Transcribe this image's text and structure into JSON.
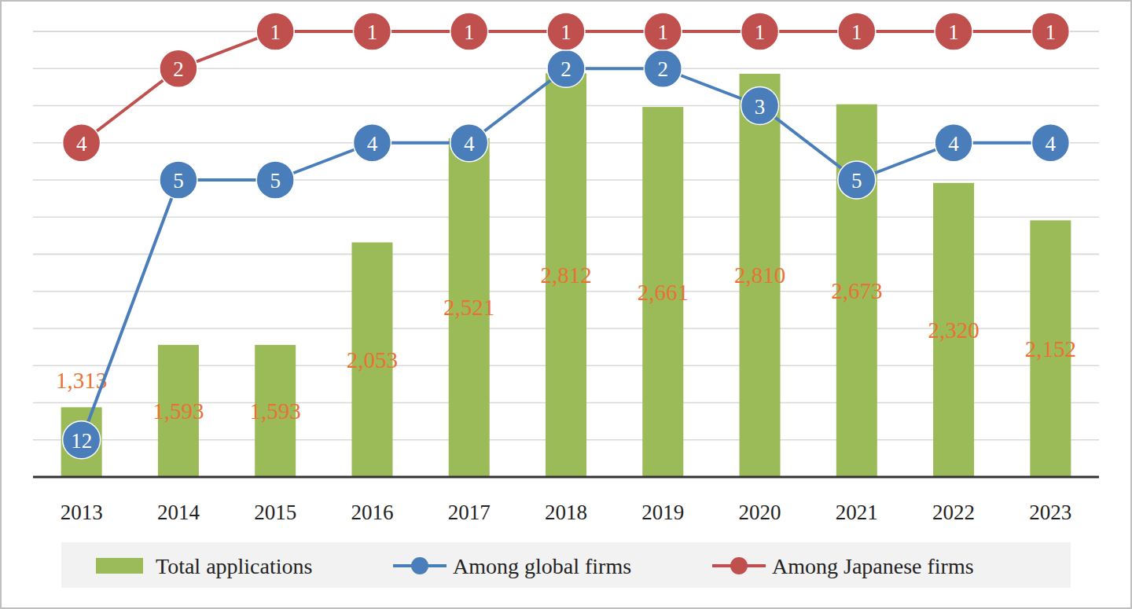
{
  "chart_data": {
    "type": "bar",
    "categories": [
      "2013",
      "2014",
      "2015",
      "2016",
      "2017",
      "2018",
      "2019",
      "2020",
      "2021",
      "2022",
      "2023"
    ],
    "series": [
      {
        "name": "Total applications",
        "type": "bar",
        "color": "#9bbb59",
        "values": [
          1313,
          1593,
          1593,
          2053,
          2521,
          2812,
          2661,
          2810,
          2673,
          2320,
          2152
        ],
        "value_labels": [
          "1,313",
          "1,593",
          "1,593",
          "2,053",
          "2,521",
          "2,812",
          "2,661",
          "2,810",
          "2,673",
          "2,320",
          "2,152"
        ],
        "data_labels": true
      },
      {
        "name": "Among global firms",
        "type": "line",
        "axis": "y2",
        "color": "#4a7ebb",
        "marker": "circle",
        "values": [
          12,
          5,
          5,
          4,
          4,
          2,
          2,
          3,
          5,
          4,
          4
        ],
        "data_labels": true
      },
      {
        "name": "Among Japanese firms",
        "type": "line",
        "axis": "y2",
        "color": "#c0504d",
        "marker": "circle",
        "values": [
          4,
          2,
          1,
          1,
          1,
          1,
          1,
          1,
          1,
          1,
          1
        ],
        "data_labels": true
      }
    ],
    "ylim": [
      1000,
      3000
    ],
    "yticks": [
      1000,
      2000,
      3000
    ],
    "y2lim": [
      13,
      1
    ],
    "y2ticks": [
      1,
      2,
      3,
      4,
      5,
      6,
      7,
      8,
      9,
      10,
      11,
      12,
      13
    ],
    "grid": true,
    "legend": "bottom",
    "tick_labels": "x"
  }
}
